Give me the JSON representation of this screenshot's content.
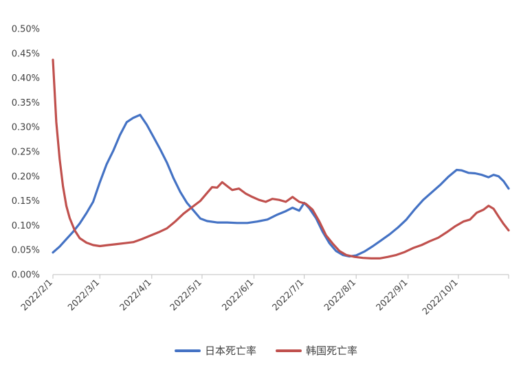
{
  "chart_data": {
    "type": "line",
    "ylim": [
      0,
      0.5
    ],
    "y_ticks": [
      "0.00%",
      "0.05%",
      "0.10%",
      "0.15%",
      "0.20%",
      "0.25%",
      "0.30%",
      "0.35%",
      "0.40%",
      "0.45%",
      "0.50%"
    ],
    "x_ticks": [
      "2022/2/1",
      "2022/3/1",
      "2022/4/1",
      "2022/5/1",
      "2022/6/1",
      "2022/7/1",
      "2022/8/1",
      "2022/9/1",
      "2022/10/1"
    ],
    "x_range": [
      "2022-02-01",
      "2022-10-31"
    ],
    "grid": false,
    "legend_position": "bottom",
    "series": [
      {
        "name": "日本死亡率",
        "color": "#4472C4",
        "points": [
          [
            "2022-02-01",
            0.045
          ],
          [
            "2022-02-05",
            0.057
          ],
          [
            "2022-02-09",
            0.072
          ],
          [
            "2022-02-13",
            0.087
          ],
          [
            "2022-02-17",
            0.104
          ],
          [
            "2022-02-21",
            0.125
          ],
          [
            "2022-02-25",
            0.148
          ],
          [
            "2022-03-01",
            0.188
          ],
          [
            "2022-03-05",
            0.224
          ],
          [
            "2022-03-09",
            0.252
          ],
          [
            "2022-03-13",
            0.284
          ],
          [
            "2022-03-17",
            0.31
          ],
          [
            "2022-03-21",
            0.319
          ],
          [
            "2022-03-25",
            0.325
          ],
          [
            "2022-03-29",
            0.305
          ],
          [
            "2022-04-02",
            0.28
          ],
          [
            "2022-04-06",
            0.255
          ],
          [
            "2022-04-10",
            0.228
          ],
          [
            "2022-04-14",
            0.196
          ],
          [
            "2022-04-18",
            0.168
          ],
          [
            "2022-04-22",
            0.146
          ],
          [
            "2022-04-26",
            0.13
          ],
          [
            "2022-04-30",
            0.114
          ],
          [
            "2022-05-04",
            0.109
          ],
          [
            "2022-05-10",
            0.106
          ],
          [
            "2022-05-16",
            0.106
          ],
          [
            "2022-05-22",
            0.105
          ],
          [
            "2022-05-28",
            0.105
          ],
          [
            "2022-06-03",
            0.108
          ],
          [
            "2022-06-09",
            0.112
          ],
          [
            "2022-06-15",
            0.122
          ],
          [
            "2022-06-20",
            0.129
          ],
          [
            "2022-06-24",
            0.136
          ],
          [
            "2022-06-28",
            0.13
          ],
          [
            "2022-07-01",
            0.146
          ],
          [
            "2022-07-04",
            0.135
          ],
          [
            "2022-07-08",
            0.115
          ],
          [
            "2022-07-12",
            0.087
          ],
          [
            "2022-07-16",
            0.064
          ],
          [
            "2022-07-20",
            0.048
          ],
          [
            "2022-07-24",
            0.04
          ],
          [
            "2022-07-28",
            0.037
          ],
          [
            "2022-08-01",
            0.039
          ],
          [
            "2022-08-06",
            0.047
          ],
          [
            "2022-08-11",
            0.058
          ],
          [
            "2022-08-16",
            0.07
          ],
          [
            "2022-08-21",
            0.082
          ],
          [
            "2022-08-26",
            0.096
          ],
          [
            "2022-08-31",
            0.112
          ],
          [
            "2022-09-05",
            0.133
          ],
          [
            "2022-09-10",
            0.152
          ],
          [
            "2022-09-15",
            0.167
          ],
          [
            "2022-09-20",
            0.182
          ],
          [
            "2022-09-25",
            0.199
          ],
          [
            "2022-09-30",
            0.213
          ],
          [
            "2022-10-03",
            0.212
          ],
          [
            "2022-10-07",
            0.207
          ],
          [
            "2022-10-11",
            0.206
          ],
          [
            "2022-10-15",
            0.203
          ],
          [
            "2022-10-19",
            0.198
          ],
          [
            "2022-10-22",
            0.203
          ],
          [
            "2022-10-25",
            0.2
          ],
          [
            "2022-10-28",
            0.19
          ],
          [
            "2022-10-31",
            0.175
          ]
        ]
      },
      {
        "name": "韩国死亡率",
        "color": "#C0504D",
        "points": [
          [
            "2022-02-01",
            0.437
          ],
          [
            "2022-02-03",
            0.31
          ],
          [
            "2022-02-05",
            0.235
          ],
          [
            "2022-02-07",
            0.18
          ],
          [
            "2022-02-09",
            0.14
          ],
          [
            "2022-02-11",
            0.115
          ],
          [
            "2022-02-14",
            0.09
          ],
          [
            "2022-02-17",
            0.074
          ],
          [
            "2022-02-21",
            0.065
          ],
          [
            "2022-02-25",
            0.06
          ],
          [
            "2022-03-01",
            0.058
          ],
          [
            "2022-03-06",
            0.06
          ],
          [
            "2022-03-11",
            0.062
          ],
          [
            "2022-03-16",
            0.064
          ],
          [
            "2022-03-21",
            0.066
          ],
          [
            "2022-03-26",
            0.072
          ],
          [
            "2022-03-31",
            0.079
          ],
          [
            "2022-04-05",
            0.086
          ],
          [
            "2022-04-10",
            0.094
          ],
          [
            "2022-04-15",
            0.108
          ],
          [
            "2022-04-20",
            0.124
          ],
          [
            "2022-04-25",
            0.137
          ],
          [
            "2022-04-30",
            0.15
          ],
          [
            "2022-05-04",
            0.166
          ],
          [
            "2022-05-07",
            0.178
          ],
          [
            "2022-05-10",
            0.177
          ],
          [
            "2022-05-13",
            0.188
          ],
          [
            "2022-05-16",
            0.18
          ],
          [
            "2022-05-19",
            0.172
          ],
          [
            "2022-05-23",
            0.175
          ],
          [
            "2022-05-27",
            0.165
          ],
          [
            "2022-05-31",
            0.158
          ],
          [
            "2022-06-04",
            0.152
          ],
          [
            "2022-06-08",
            0.148
          ],
          [
            "2022-06-12",
            0.154
          ],
          [
            "2022-06-16",
            0.152
          ],
          [
            "2022-06-20",
            0.148
          ],
          [
            "2022-06-24",
            0.158
          ],
          [
            "2022-06-28",
            0.148
          ],
          [
            "2022-07-02",
            0.144
          ],
          [
            "2022-07-06",
            0.132
          ],
          [
            "2022-07-10",
            0.108
          ],
          [
            "2022-07-14",
            0.08
          ],
          [
            "2022-07-18",
            0.063
          ],
          [
            "2022-07-22",
            0.048
          ],
          [
            "2022-07-26",
            0.04
          ],
          [
            "2022-07-31",
            0.036
          ],
          [
            "2022-08-05",
            0.034
          ],
          [
            "2022-08-10",
            0.033
          ],
          [
            "2022-08-15",
            0.033
          ],
          [
            "2022-08-20",
            0.036
          ],
          [
            "2022-08-25",
            0.04
          ],
          [
            "2022-08-30",
            0.046
          ],
          [
            "2022-09-04",
            0.054
          ],
          [
            "2022-09-09",
            0.06
          ],
          [
            "2022-09-14",
            0.068
          ],
          [
            "2022-09-19",
            0.075
          ],
          [
            "2022-09-24",
            0.086
          ],
          [
            "2022-09-29",
            0.098
          ],
          [
            "2022-10-04",
            0.108
          ],
          [
            "2022-10-08",
            0.112
          ],
          [
            "2022-10-12",
            0.126
          ],
          [
            "2022-10-16",
            0.132
          ],
          [
            "2022-10-19",
            0.14
          ],
          [
            "2022-10-22",
            0.134
          ],
          [
            "2022-10-25",
            0.118
          ],
          [
            "2022-10-28",
            0.103
          ],
          [
            "2022-10-31",
            0.09
          ]
        ]
      }
    ]
  }
}
